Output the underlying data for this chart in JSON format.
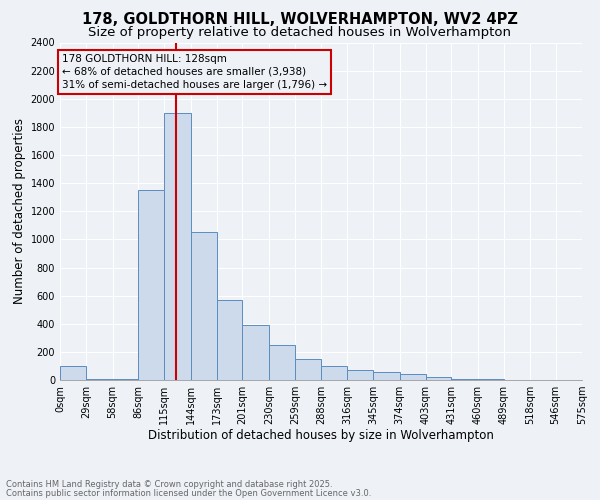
{
  "title": "178, GOLDTHORN HILL, WOLVERHAMPTON, WV2 4PZ",
  "subtitle": "Size of property relative to detached houses in Wolverhampton",
  "xlabel": "Distribution of detached houses by size in Wolverhampton",
  "ylabel": "Number of detached properties",
  "footnote1": "Contains HM Land Registry data © Crown copyright and database right 2025.",
  "footnote2": "Contains public sector information licensed under the Open Government Licence v3.0.",
  "annotation_title": "178 GOLDTHORN HILL: 128sqm",
  "annotation_line1": "← 68% of detached houses are smaller (3,938)",
  "annotation_line2": "31% of semi-detached houses are larger (1,796) →",
  "property_size": 128,
  "bar_color": "#ccdaeb",
  "bar_edge_color": "#5a8dbf",
  "vline_color": "#cc0000",
  "bin_edges": [
    0,
    29,
    58,
    86,
    115,
    144,
    173,
    201,
    230,
    259,
    288,
    316,
    345,
    374,
    403,
    431,
    460,
    489,
    518,
    546,
    575
  ],
  "bin_labels": [
    "0sqm",
    "29sqm",
    "58sqm",
    "86sqm",
    "115sqm",
    "144sqm",
    "173sqm",
    "201sqm",
    "230sqm",
    "259sqm",
    "288sqm",
    "316sqm",
    "345sqm",
    "374sqm",
    "403sqm",
    "431sqm",
    "460sqm",
    "489sqm",
    "518sqm",
    "546sqm",
    "575sqm"
  ],
  "counts": [
    100,
    10,
    10,
    1350,
    1900,
    1050,
    570,
    390,
    250,
    150,
    100,
    70,
    55,
    40,
    20,
    10,
    5,
    3,
    2,
    0
  ],
  "ylim": [
    0,
    2400
  ],
  "yticks": [
    0,
    200,
    400,
    600,
    800,
    1000,
    1200,
    1400,
    1600,
    1800,
    2000,
    2200,
    2400
  ],
  "background_color": "#eef2f7",
  "grid_color": "#ffffff",
  "title_fontsize": 10.5,
  "subtitle_fontsize": 9.5,
  "axis_label_fontsize": 8.5,
  "tick_fontsize": 7,
  "annotation_fontsize": 7.5,
  "annotation_box_color": "#cc0000",
  "footnote_color": "#666666",
  "footnote_fontsize": 6
}
